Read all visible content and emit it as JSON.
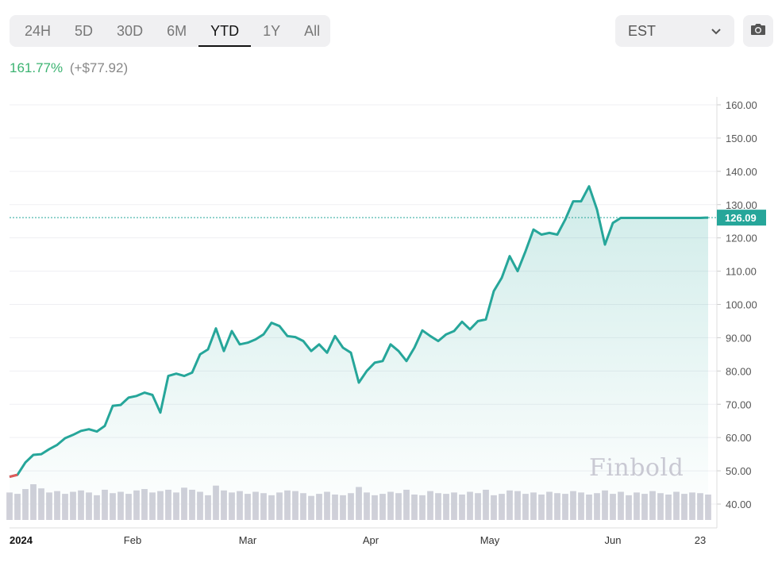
{
  "range_tabs": [
    "24H",
    "5D",
    "30D",
    "6M",
    "YTD",
    "1Y",
    "All"
  ],
  "active_range": "YTD",
  "timezone": "EST",
  "change": {
    "percent": "161.77%",
    "absolute": "(+$77.92)"
  },
  "watermark": "Finbold",
  "icons": {
    "dropdown": "chevron-down-icon",
    "screenshot": "camera-icon"
  },
  "colors": {
    "line": "#26a69a",
    "line_down": "#e05a5a",
    "positive": "#3bb371",
    "volume": "#d0d0d9"
  },
  "chart_data": {
    "type": "area",
    "ylim": [
      40,
      160
    ],
    "yticks": [
      "160.00",
      "150.00",
      "140.00",
      "130.00",
      "120.00",
      "110.00",
      "100.00",
      "90.00",
      "80.00",
      "70.00",
      "60.00",
      "50.00",
      "40.00"
    ],
    "xticks": [
      {
        "label": "2024",
        "day": 1,
        "bold": true
      },
      {
        "label": "Feb",
        "day": 32
      },
      {
        "label": "Mar",
        "day": 61
      },
      {
        "label": "Apr",
        "day": 92
      },
      {
        "label": "May",
        "day": 122
      },
      {
        "label": "Jun",
        "day": 153
      },
      {
        "label": "23",
        "day": 175
      }
    ],
    "x_start_day": 1,
    "x_end_day": 178,
    "last_price": "126.09",
    "last_value": 126.09,
    "x": [
      1,
      3,
      5,
      7,
      9,
      11,
      13,
      15,
      17,
      19,
      21,
      23,
      25,
      27,
      29,
      31,
      33,
      35,
      37,
      39,
      41,
      43,
      45,
      47,
      49,
      51,
      53,
      55,
      57,
      59,
      61,
      63,
      65,
      67,
      69,
      71,
      73,
      75,
      77,
      79,
      81,
      83,
      85,
      87,
      89,
      91,
      93,
      95,
      97,
      99,
      101,
      103,
      105,
      107,
      109,
      111,
      113,
      115,
      117,
      119,
      121,
      123,
      125,
      127,
      129,
      131,
      133,
      135,
      137,
      139,
      141,
      143,
      145,
      147,
      149,
      151,
      153,
      155,
      157,
      159,
      161,
      163,
      165,
      167,
      169,
      171,
      173,
      175,
      177
    ],
    "values": [
      48.2,
      48.8,
      52.5,
      54.8,
      55.0,
      56.5,
      57.8,
      59.8,
      60.8,
      62.0,
      62.5,
      61.8,
      63.5,
      69.5,
      69.8,
      72.0,
      72.5,
      73.5,
      72.8,
      67.5,
      78.5,
      79.2,
      78.5,
      79.5,
      85.0,
      86.5,
      92.8,
      86.0,
      92.0,
      88.0,
      88.5,
      89.5,
      91.0,
      94.5,
      93.5,
      90.5,
      90.2,
      89.0,
      86.0,
      88.0,
      85.5,
      90.5,
      87.0,
      85.5,
      76.5,
      80.0,
      82.5,
      83.0,
      88.0,
      86.0,
      83.0,
      87.0,
      92.2,
      90.5,
      89.0,
      91.0,
      92.0,
      94.8,
      92.5,
      95.0,
      95.5,
      104.0,
      108.0,
      114.5,
      110.0,
      116.0,
      122.5,
      121.0,
      121.5,
      121.0,
      125.5,
      131.0,
      131.0,
      135.5,
      128.5,
      118.0,
      124.5,
      126.0,
      126.0,
      126.0,
      126.0,
      126.0,
      126.0,
      126.0,
      126.0,
      126.0,
      126.0,
      126.0,
      126.09
    ],
    "volume": [
      40,
      38,
      45,
      52,
      46,
      40,
      42,
      38,
      41,
      43,
      40,
      36,
      44,
      39,
      41,
      38,
      43,
      45,
      40,
      42,
      44,
      40,
      47,
      44,
      41,
      36,
      50,
      43,
      40,
      42,
      38,
      41,
      39,
      36,
      40,
      43,
      42,
      39,
      35,
      38,
      41,
      37,
      36,
      39,
      48,
      40,
      36,
      38,
      41,
      39,
      44,
      37,
      36,
      42,
      39,
      38,
      40,
      37,
      41,
      39,
      44,
      36,
      38,
      43,
      42,
      38,
      40,
      37,
      41,
      39,
      38,
      42,
      40,
      37,
      39,
      43,
      38,
      41,
      36,
      40,
      38,
      42,
      39,
      37,
      41,
      38,
      40,
      39,
      37
    ]
  }
}
